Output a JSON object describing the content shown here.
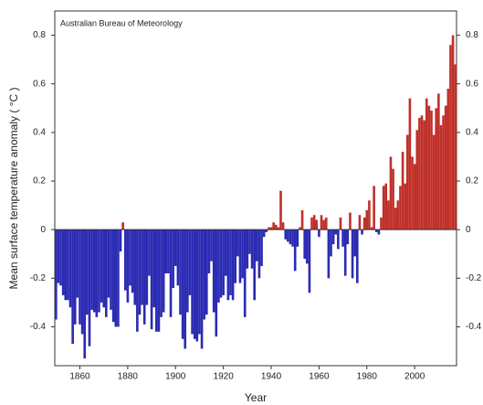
{
  "chart_data": {
    "type": "bar",
    "annotation": "Australian Bureau of Meteorology",
    "xlabel": "Year",
    "ylabel": "Mean surface temperature anomaly ( °C )",
    "x": [
      1850,
      1851,
      1852,
      1853,
      1854,
      1855,
      1856,
      1857,
      1858,
      1859,
      1860,
      1861,
      1862,
      1863,
      1864,
      1865,
      1866,
      1867,
      1868,
      1869,
      1870,
      1871,
      1872,
      1873,
      1874,
      1875,
      1876,
      1877,
      1878,
      1879,
      1880,
      1881,
      1882,
      1883,
      1884,
      1885,
      1886,
      1887,
      1888,
      1889,
      1890,
      1891,
      1892,
      1893,
      1894,
      1895,
      1896,
      1897,
      1898,
      1899,
      1900,
      1901,
      1902,
      1903,
      1904,
      1905,
      1906,
      1907,
      1908,
      1909,
      1910,
      1911,
      1912,
      1913,
      1914,
      1915,
      1916,
      1917,
      1918,
      1919,
      1920,
      1921,
      1922,
      1923,
      1924,
      1925,
      1926,
      1927,
      1928,
      1929,
      1930,
      1931,
      1932,
      1933,
      1934,
      1935,
      1936,
      1937,
      1938,
      1939,
      1940,
      1941,
      1942,
      1943,
      1944,
      1945,
      1946,
      1947,
      1948,
      1949,
      1950,
      1951,
      1952,
      1953,
      1954,
      1955,
      1956,
      1957,
      1958,
      1959,
      1960,
      1961,
      1962,
      1963,
      1964,
      1965,
      1966,
      1967,
      1968,
      1969,
      1970,
      1971,
      1972,
      1973,
      1974,
      1975,
      1976,
      1977,
      1978,
      1979,
      1980,
      1981,
      1982,
      1983,
      1984,
      1985,
      1986,
      1987,
      1988,
      1989,
      1990,
      1991,
      1992,
      1993,
      1994,
      1995,
      1996,
      1997,
      1998,
      1999,
      2000,
      2001,
      2002,
      2003,
      2004,
      2005,
      2006,
      2007,
      2008,
      2009,
      2010,
      2011,
      2012,
      2013,
      2014,
      2015,
      2016,
      2017
    ],
    "values": [
      -0.37,
      -0.22,
      -0.23,
      -0.27,
      -0.29,
      -0.29,
      -0.32,
      -0.47,
      -0.39,
      -0.28,
      -0.39,
      -0.43,
      -0.53,
      -0.35,
      -0.48,
      -0.33,
      -0.34,
      -0.36,
      -0.34,
      -0.3,
      -0.32,
      -0.36,
      -0.28,
      -0.33,
      -0.38,
      -0.4,
      -0.4,
      -0.09,
      0.03,
      -0.25,
      -0.3,
      -0.23,
      -0.26,
      -0.31,
      -0.42,
      -0.35,
      -0.31,
      -0.39,
      -0.31,
      -0.19,
      -0.41,
      -0.32,
      -0.42,
      -0.42,
      -0.36,
      -0.34,
      -0.18,
      -0.18,
      -0.36,
      -0.24,
      -0.15,
      -0.23,
      -0.35,
      -0.45,
      -0.49,
      -0.34,
      -0.27,
      -0.43,
      -0.45,
      -0.46,
      -0.43,
      -0.49,
      -0.37,
      -0.35,
      -0.18,
      -0.13,
      -0.34,
      -0.44,
      -0.3,
      -0.28,
      -0.27,
      -0.19,
      -0.29,
      -0.27,
      -0.29,
      -0.22,
      -0.11,
      -0.22,
      -0.2,
      -0.36,
      -0.16,
      -0.1,
      -0.16,
      -0.29,
      -0.13,
      -0.2,
      -0.15,
      -0.03,
      -0.01,
      0.01,
      0.01,
      0.03,
      0.02,
      0.01,
      0.16,
      0.03,
      -0.04,
      -0.05,
      -0.06,
      -0.07,
      -0.17,
      -0.07,
      0.01,
      0.08,
      -0.12,
      -0.14,
      -0.26,
      0.05,
      0.06,
      0.04,
      -0.03,
      0.06,
      0.04,
      0.05,
      -0.2,
      -0.11,
      -0.06,
      -0.02,
      -0.08,
      0.05,
      -0.07,
      -0.19,
      -0.06,
      0.07,
      -0.2,
      -0.11,
      -0.22,
      0.06,
      -0.02,
      0.05,
      0.08,
      0.12,
      0.01,
      0.18,
      -0.01,
      -0.02,
      0.05,
      0.18,
      0.19,
      0.12,
      0.3,
      0.25,
      0.09,
      0.12,
      0.18,
      0.32,
      0.19,
      0.39,
      0.54,
      0.3,
      0.27,
      0.41,
      0.46,
      0.47,
      0.45,
      0.54,
      0.51,
      0.49,
      0.39,
      0.5,
      0.56,
      0.43,
      0.47,
      0.51,
      0.58,
      0.76,
      0.8,
      0.68
    ],
    "positive_color": "#c0302a",
    "negative_color": "#2b2bb3",
    "xlim": [
      1849.5,
      2017.5
    ],
    "xticks": [
      1860,
      1880,
      1900,
      1920,
      1940,
      1960,
      1980,
      2000
    ],
    "ylim": [
      -0.56,
      0.9
    ],
    "yticks": [
      -0.4,
      -0.2,
      0,
      0.2,
      0.4,
      0.6,
      0.8
    ]
  }
}
